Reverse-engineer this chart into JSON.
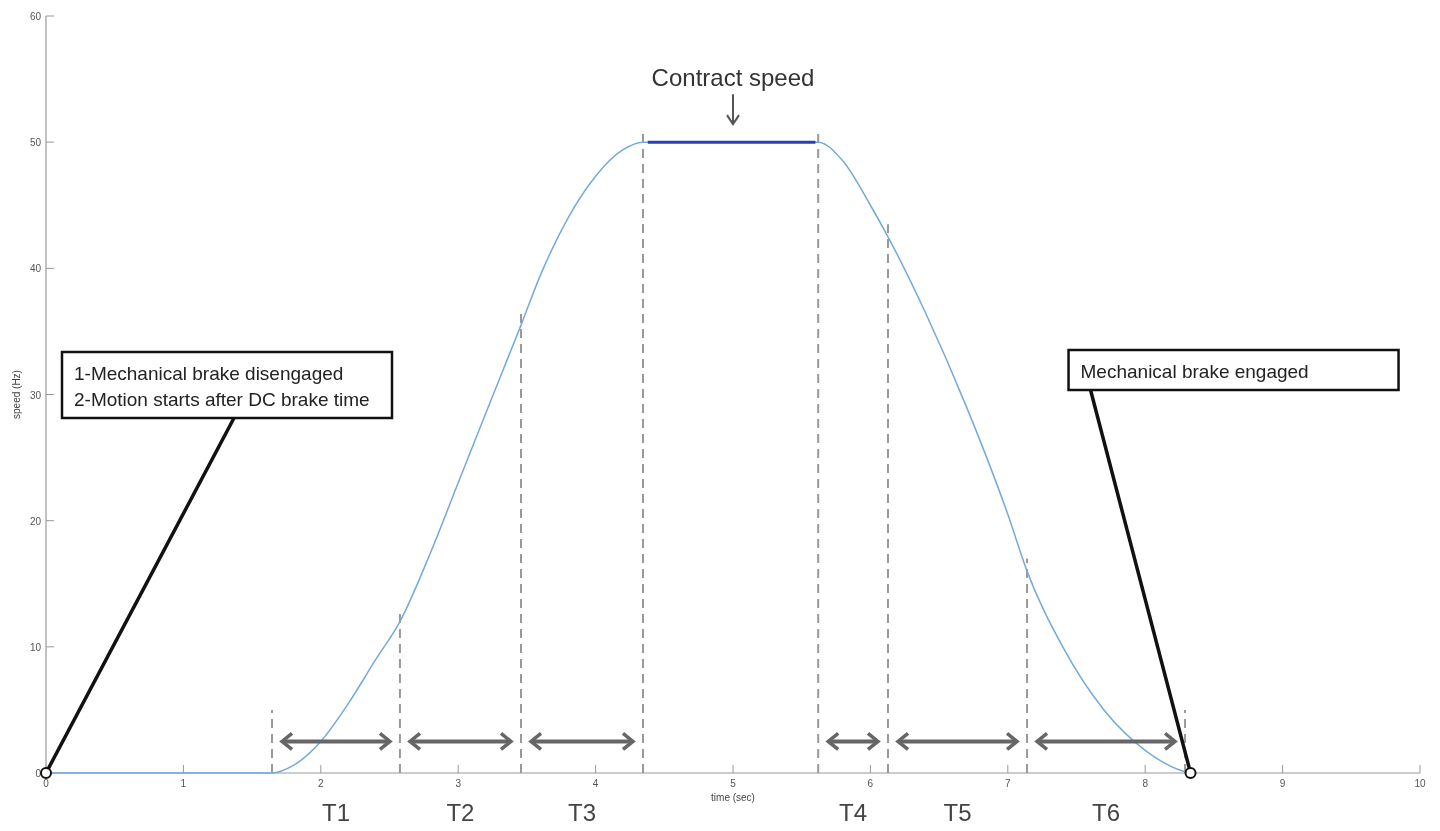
{
  "chart_data": {
    "type": "line",
    "xlabel": "time (sec)",
    "ylabel": "speed (Hz)",
    "xlim": [
      0,
      10
    ],
    "ylim": [
      0,
      60
    ],
    "xticks": [
      0,
      1,
      2,
      3,
      4,
      5,
      6,
      7,
      8,
      9,
      10
    ],
    "yticks": [
      0,
      10,
      20,
      30,
      40,
      50,
      60
    ],
    "series": [
      {
        "color": "#74a9dc",
        "x": [
          0,
          1.645,
          1.8,
          2.0,
          2.2,
          2.4,
          2.576,
          2.8,
          3.0,
          3.2,
          3.457,
          3.6,
          3.8,
          4.0,
          4.2,
          4.345,
          5.62,
          5.8,
          6.0,
          6.128,
          6.4,
          6.7,
          7.0,
          7.14,
          7.4,
          7.7,
          8.0,
          8.29,
          8.33
        ],
        "values": [
          0,
          0,
          0.6,
          2.5,
          5.5,
          9,
          12,
          17.5,
          23,
          28.5,
          35.5,
          39.5,
          44,
          47.3,
          49.4,
          50,
          50,
          48.5,
          45,
          42.5,
          36.5,
          29,
          20.5,
          16,
          10,
          5,
          1.8,
          0.1,
          0
        ]
      },
      {
        "color": "#2a3fb5",
        "x": [
          4.38,
          5.6
        ],
        "values": [
          50,
          50
        ]
      }
    ],
    "ref_lines": [
      {
        "axis": "x",
        "value": 1.645,
        "color": "#999999",
        "line_style": "dashed"
      },
      {
        "axis": "x",
        "value": 2.576,
        "color": "#999999",
        "line_style": "dashed"
      },
      {
        "axis": "x",
        "value": 3.457,
        "color": "#999999",
        "line_style": "dashed"
      },
      {
        "axis": "x",
        "value": 4.345,
        "color": "#999999",
        "line_style": "dashed"
      },
      {
        "axis": "x",
        "value": 5.62,
        "color": "#999999",
        "line_style": "dashed"
      },
      {
        "axis": "x",
        "value": 6.128,
        "color": "#999999",
        "line_style": "dashed"
      },
      {
        "axis": "x",
        "value": 7.14,
        "color": "#999999",
        "line_style": "dashed"
      },
      {
        "axis": "x",
        "value": 8.29,
        "color": "#999999",
        "line_style": "dashed"
      }
    ],
    "annotations": [
      {
        "text": "1-Mechanical brake disengaged\n2-Motion starts after DC brake time",
        "x": 0,
        "y": 0
      },
      {
        "text": "Mechanical brake engaged",
        "x": 8.33,
        "y": 0
      },
      {
        "text": "Contract speed",
        "x": 5,
        "y": 50
      },
      "T1",
      "T2",
      "T3",
      "T4",
      "T5",
      "T6"
    ],
    "grid": false
  }
}
